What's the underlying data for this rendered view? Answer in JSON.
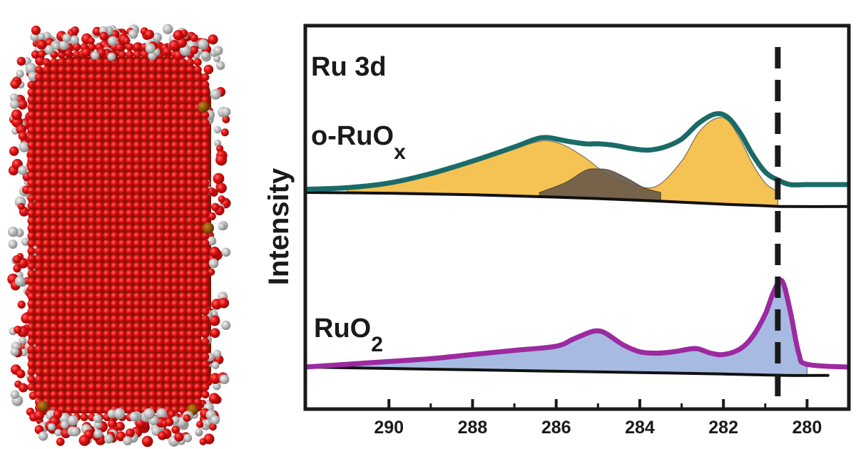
{
  "image": {
    "description_hidden": false,
    "atom_colors": {
      "oxygen": "#e00f0f",
      "ruthenium_surface": "#b7b7b7",
      "ruthenium_core": "#7a4a0c"
    }
  },
  "chart_data": {
    "type": "line",
    "title": "Ru 3d",
    "xlabel": "",
    "ylabel": "Intensity",
    "xlim": [
      292,
      279
    ],
    "x_reversed": true,
    "xticks": [
      290,
      288,
      286,
      284,
      282,
      280
    ],
    "reference_line": {
      "x": 280.7,
      "style": "dashed",
      "color": "#1a1a1a"
    },
    "grid": false,
    "legend": "none",
    "colors": {
      "ox_envelope": "#1a6b68",
      "ox_fit_main": "#f4bd45",
      "ox_fit_minor": "#6b5a4a",
      "ruo2_envelope": "#9b2aa0",
      "ruo2_fit": "#9fb5e0",
      "background": "#111111"
    },
    "series": [
      {
        "label_main": "o-RuO",
        "label_sub": "x",
        "envelope": [
          [
            292,
            0.02
          ],
          [
            291,
            0.03
          ],
          [
            290,
            0.06
          ],
          [
            289,
            0.12
          ],
          [
            288,
            0.2
          ],
          [
            287,
            0.29
          ],
          [
            286.5,
            0.34
          ],
          [
            286.2,
            0.35
          ],
          [
            285.8,
            0.33
          ],
          [
            285.3,
            0.31
          ],
          [
            285,
            0.31
          ],
          [
            284.6,
            0.3
          ],
          [
            284.2,
            0.28
          ],
          [
            283.8,
            0.27
          ],
          [
            283.4,
            0.29
          ],
          [
            283,
            0.34
          ],
          [
            282.6,
            0.44
          ],
          [
            282.2,
            0.5
          ],
          [
            281.9,
            0.48
          ],
          [
            281.6,
            0.38
          ],
          [
            281.3,
            0.24
          ],
          [
            281,
            0.13
          ],
          [
            280.7,
            0.08
          ],
          [
            280.4,
            0.05
          ],
          [
            280,
            0.05
          ],
          [
            279,
            0.05
          ]
        ],
        "background_curve": [
          [
            292,
            0.0
          ],
          [
            290,
            -0.005
          ],
          [
            288,
            -0.015
          ],
          [
            286,
            -0.03
          ],
          [
            284,
            -0.05
          ],
          [
            282,
            -0.075
          ],
          [
            281,
            -0.085
          ],
          [
            280.5,
            -0.09
          ],
          [
            279,
            -0.09
          ]
        ],
        "fit_main": [
          [
            291,
            0.04
          ],
          [
            290,
            0.06
          ],
          [
            289,
            0.12
          ],
          [
            288,
            0.2
          ],
          [
            287,
            0.28
          ],
          [
            286.5,
            0.32
          ],
          [
            286.2,
            0.33
          ],
          [
            285.8,
            0.3
          ],
          [
            285.3,
            0.22
          ],
          [
            284.8,
            0.12
          ],
          [
            284.2,
            0.05
          ],
          [
            283.6,
            0.04
          ],
          [
            283,
            0.2
          ],
          [
            282.6,
            0.38
          ],
          [
            282.2,
            0.47
          ],
          [
            281.9,
            0.46
          ],
          [
            281.6,
            0.34
          ],
          [
            281.3,
            0.18
          ],
          [
            281,
            0.06
          ],
          [
            280.8,
            0.02
          ],
          [
            280.7,
            0.0
          ]
        ],
        "fit_minor": [
          [
            286.4,
            0.0
          ],
          [
            285.8,
            0.06
          ],
          [
            285.3,
            0.14
          ],
          [
            285,
            0.15
          ],
          [
            284.7,
            0.14
          ],
          [
            284.3,
            0.09
          ],
          [
            283.9,
            0.03
          ],
          [
            283.5,
            0.0
          ]
        ]
      },
      {
        "label_main": "RuO",
        "label_sub": "2",
        "envelope": [
          [
            292,
            0.0
          ],
          [
            291,
            0.02
          ],
          [
            290,
            0.04
          ],
          [
            289,
            0.06
          ],
          [
            288,
            0.09
          ],
          [
            287,
            0.12
          ],
          [
            286,
            0.15
          ],
          [
            285.6,
            0.2
          ],
          [
            285.2,
            0.25
          ],
          [
            285,
            0.26
          ],
          [
            284.8,
            0.24
          ],
          [
            284.4,
            0.16
          ],
          [
            284,
            0.11
          ],
          [
            283.6,
            0.1
          ],
          [
            283.2,
            0.11
          ],
          [
            282.8,
            0.13
          ],
          [
            282.6,
            0.13
          ],
          [
            282.3,
            0.1
          ],
          [
            282,
            0.09
          ],
          [
            281.6,
            0.13
          ],
          [
            281.3,
            0.22
          ],
          [
            281,
            0.38
          ],
          [
            280.8,
            0.54
          ],
          [
            280.6,
            0.62
          ],
          [
            280.4,
            0.4
          ],
          [
            280.2,
            0.1
          ],
          [
            280,
            0.02
          ],
          [
            279,
            0.0
          ]
        ],
        "fit_main": [
          [
            291,
            0.02
          ],
          [
            290,
            0.04
          ],
          [
            289,
            0.06
          ],
          [
            288,
            0.09
          ],
          [
            287,
            0.12
          ],
          [
            286,
            0.15
          ],
          [
            285.6,
            0.2
          ],
          [
            285.2,
            0.24
          ],
          [
            285,
            0.25
          ],
          [
            284.8,
            0.23
          ],
          [
            284.4,
            0.15
          ],
          [
            284,
            0.11
          ],
          [
            283.6,
            0.1
          ],
          [
            283.2,
            0.11
          ],
          [
            282.8,
            0.13
          ],
          [
            282.6,
            0.13
          ],
          [
            282.3,
            0.1
          ],
          [
            282,
            0.09
          ],
          [
            281.6,
            0.13
          ],
          [
            281.3,
            0.22
          ],
          [
            281,
            0.38
          ],
          [
            280.8,
            0.54
          ],
          [
            280.6,
            0.6
          ],
          [
            280.4,
            0.38
          ],
          [
            280.2,
            0.08
          ],
          [
            280,
            0.0
          ]
        ],
        "background_curve": [
          [
            292,
            0.0
          ],
          [
            290,
            -0.01
          ],
          [
            288,
            -0.02
          ],
          [
            286,
            -0.03
          ],
          [
            284,
            -0.04
          ],
          [
            282,
            -0.05
          ],
          [
            280.5,
            -0.06
          ],
          [
            279.5,
            -0.06
          ]
        ]
      }
    ]
  }
}
